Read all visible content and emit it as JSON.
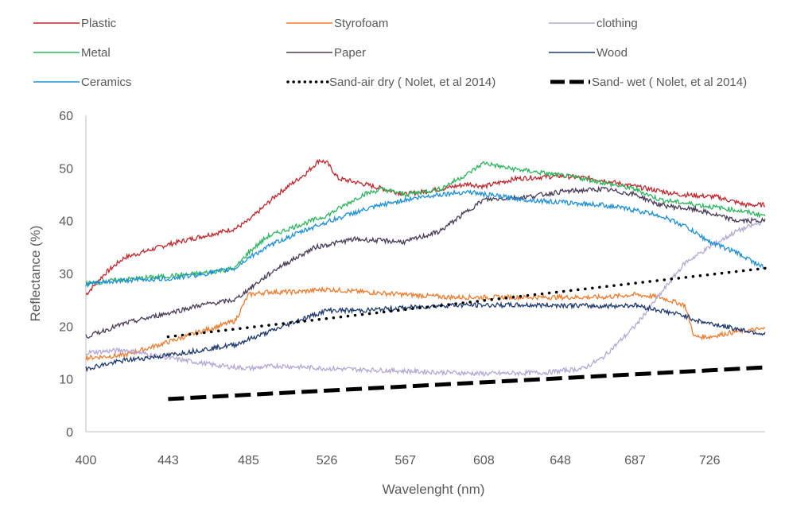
{
  "chart_data": {
    "type": "line",
    "title": "",
    "xlabel": "Wavelenght (nm)",
    "ylabel": "Reflectance (%)",
    "xlim": [
      400,
      755
    ],
    "ylim": [
      0,
      60
    ],
    "x_ticks": [
      "400",
      "443",
      "485",
      "526",
      "567",
      "608",
      "648",
      "687",
      "726"
    ],
    "y_ticks": [
      "0",
      "10",
      "20",
      "30",
      "40",
      "50",
      "60"
    ],
    "grid": false,
    "legend_position": "top",
    "series": [
      {
        "name": "Plastic",
        "color": "#c0282d",
        "style": "solid",
        "x": [
          400,
          410,
          420,
          443,
          460,
          478,
          485,
          500,
          515,
          522,
          526,
          532,
          545,
          567,
          585,
          600,
          608,
          625,
          648,
          665,
          687,
          710,
          730,
          745,
          755
        ],
        "y": [
          26,
          30,
          33,
          35.5,
          37,
          38.5,
          40,
          45,
          49,
          51.5,
          51,
          48,
          47,
          45,
          46,
          47,
          46.5,
          48,
          48.5,
          48,
          46.5,
          45,
          44.5,
          43,
          43
        ]
      },
      {
        "name": "Styrofoam",
        "color": "#ed7d31",
        "style": "solid",
        "x": [
          400,
          420,
          443,
          460,
          478,
          485,
          495,
          510,
          526,
          545,
          567,
          590,
          608,
          630,
          648,
          670,
          687,
          700,
          713,
          718,
          726,
          740,
          755
        ],
        "y": [
          14,
          14.5,
          17,
          19,
          21,
          26,
          26.5,
          26.5,
          27,
          26.5,
          26,
          25.5,
          25.5,
          25.5,
          25.5,
          25.5,
          26,
          25.5,
          24,
          18,
          18,
          19,
          19.5
        ]
      },
      {
        "name": "clothing",
        "color": "#b4a7d6",
        "style": "solid",
        "x": [
          400,
          420,
          443,
          470,
          485,
          500,
          526,
          567,
          608,
          640,
          660,
          670,
          687,
          700,
          713,
          726,
          740,
          755
        ],
        "y": [
          15,
          15.5,
          14,
          12.5,
          12,
          12.5,
          12,
          11.5,
          11,
          11.2,
          12,
          14,
          20,
          26,
          32,
          35,
          38,
          40
        ]
      },
      {
        "name": "Metal",
        "color": "#2db55d",
        "style": "solid",
        "x": [
          400,
          410,
          425,
          443,
          460,
          478,
          485,
          495,
          510,
          526,
          545,
          555,
          567,
          585,
          600,
          608,
          620,
          640,
          660,
          687,
          700,
          720,
          740,
          755
        ],
        "y": [
          28,
          28.5,
          29,
          29.5,
          30,
          31,
          34,
          37,
          39,
          41,
          45,
          46,
          45,
          46,
          49,
          51,
          50,
          49,
          48,
          46,
          44,
          43,
          42,
          41
        ]
      },
      {
        "name": "Paper",
        "color": "#4a3b57",
        "style": "solid",
        "x": [
          400,
          420,
          443,
          460,
          478,
          485,
          500,
          520,
          540,
          567,
          585,
          600,
          608,
          630,
          648,
          670,
          687,
          700,
          720,
          740,
          755
        ],
        "y": [
          18,
          20.5,
          22.5,
          24,
          25,
          27,
          31,
          35,
          36.5,
          36,
          38,
          42,
          44,
          44.5,
          45.5,
          46,
          45,
          43,
          42,
          40,
          40
        ]
      },
      {
        "name": "Wood",
        "color": "#1f3a6e",
        "style": "solid",
        "x": [
          400,
          420,
          443,
          460,
          478,
          485,
          500,
          510,
          526,
          545,
          567,
          590,
          608,
          630,
          648,
          670,
          687,
          700,
          713,
          720,
          740,
          755
        ],
        "y": [
          12,
          13.5,
          14.5,
          15.5,
          16.5,
          17.5,
          19.5,
          21,
          23,
          23,
          23.5,
          24,
          24,
          24,
          24,
          23.8,
          24,
          23,
          22,
          21,
          19.5,
          18.5
        ]
      },
      {
        "name": "Ceramics",
        "color": "#1f8fd6",
        "style": "solid",
        "x": [
          400,
          420,
          443,
          460,
          478,
          485,
          500,
          520,
          540,
          555,
          567,
          585,
          600,
          608,
          630,
          648,
          670,
          687,
          700,
          713,
          726,
          740,
          755
        ],
        "y": [
          28,
          28.7,
          29,
          29.8,
          31,
          33,
          36,
          39,
          41.5,
          43,
          44,
          45,
          45.5,
          45,
          44,
          43.5,
          43,
          42,
          41,
          39,
          36,
          34,
          31
        ]
      },
      {
        "name": "Sand-air dry ( Nolet, et al 2014)",
        "color": "#000000",
        "style": "dotted",
        "x": [
          443,
          755
        ],
        "y": [
          18,
          31
        ]
      },
      {
        "name": "Sand- wet ( Nolet, et al 2014)",
        "color": "#000000",
        "style": "dashed",
        "x": [
          443,
          755
        ],
        "y": [
          6.2,
          12.2
        ]
      }
    ]
  }
}
